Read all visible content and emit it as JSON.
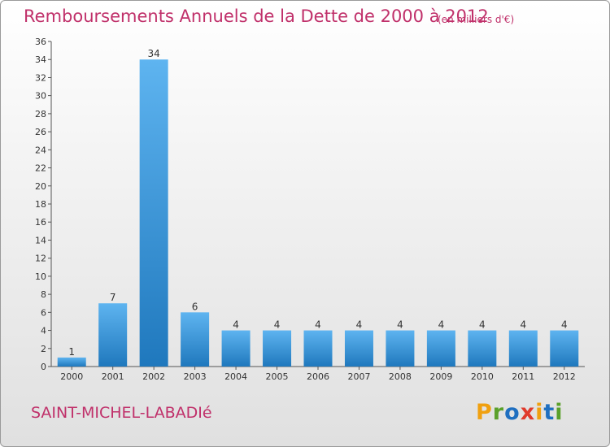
{
  "header": {
    "title": "Remboursements Annuels de la Dette de 2000 à 2012",
    "unit": "(en milliers d'€)"
  },
  "footer": {
    "commune": "SAINT-MICHEL-LABADIé",
    "logo_letters": [
      "P",
      "r",
      "o",
      "x",
      "i",
      "t",
      "i"
    ],
    "logo_colors": [
      "#f0a010",
      "#5aa02a",
      "#1f6fc0",
      "#e03a2c",
      "#f0a010",
      "#1f6fc0",
      "#5aa02a"
    ]
  },
  "colors": {
    "title": "#c0306a",
    "bar_light": "#5eb4f0",
    "bar_dark": "#1f78bd",
    "axis": "#555555"
  },
  "chart_data": {
    "type": "bar",
    "categories": [
      "2000",
      "2001",
      "2002",
      "2003",
      "2004",
      "2005",
      "2006",
      "2007",
      "2008",
      "2009",
      "2010",
      "2011",
      "2012"
    ],
    "values": [
      1,
      7,
      34,
      6,
      4,
      4,
      4,
      4,
      4,
      4,
      4,
      4,
      4
    ],
    "title": "Remboursements Annuels de la Dette de 2000 à 2012",
    "subtitle": "(en milliers d'€)",
    "ylim": [
      0,
      36
    ],
    "yticks": [
      0,
      2,
      4,
      6,
      8,
      10,
      12,
      14,
      16,
      18,
      20,
      22,
      24,
      26,
      28,
      30,
      32,
      34,
      36
    ],
    "grid": false,
    "legend": "none"
  }
}
